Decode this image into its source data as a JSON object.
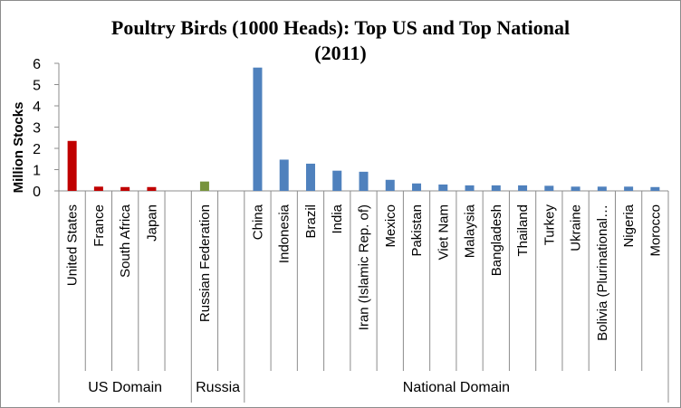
{
  "chart_data": {
    "type": "bar",
    "title_line1": "Poultry Birds (1000 Heads): Top US and Top  National",
    "title_line2": "(2011)",
    "ylabel": "Million  Stocks",
    "ylim": [
      0,
      6
    ],
    "yticks": [
      "0",
      "1",
      "2",
      "3",
      "4",
      "5",
      "6"
    ],
    "grid": false,
    "legend": "none",
    "categories": [
      "United States",
      "France",
      "South Africa",
      "Japan",
      "",
      "Russian Federation",
      "",
      "China",
      "Indonesia",
      "Brazil",
      "India",
      "Iran (Islamic Rep. of)",
      "Mexico",
      "Pakistan",
      "Viet Nam",
      "Malaysia",
      "Bangladesh",
      "Thailand",
      "Turkey",
      "Ukraine",
      "Bolivia (Plurinational…",
      "Nigeria",
      "Morocco"
    ],
    "values": [
      2.35,
      0.2,
      0.18,
      0.18,
      null,
      0.44,
      null,
      5.8,
      1.47,
      1.28,
      0.95,
      0.9,
      0.52,
      0.35,
      0.3,
      0.26,
      0.26,
      0.26,
      0.24,
      0.2,
      0.2,
      0.2,
      0.18
    ],
    "colors": [
      "#c00000",
      "#c00000",
      "#c00000",
      "#c00000",
      null,
      "#77933c",
      null,
      "#4f81bd",
      "#4f81bd",
      "#4f81bd",
      "#4f81bd",
      "#4f81bd",
      "#4f81bd",
      "#4f81bd",
      "#4f81bd",
      "#4f81bd",
      "#4f81bd",
      "#4f81bd",
      "#4f81bd",
      "#4f81bd",
      "#4f81bd",
      "#4f81bd",
      "#4f81bd"
    ],
    "groups": [
      {
        "label": "US Domain",
        "start": 0,
        "end": 4
      },
      {
        "label": "Russia",
        "start": 5,
        "end": 6
      },
      {
        "label": "National Domain",
        "start": 7,
        "end": 22
      }
    ]
  }
}
